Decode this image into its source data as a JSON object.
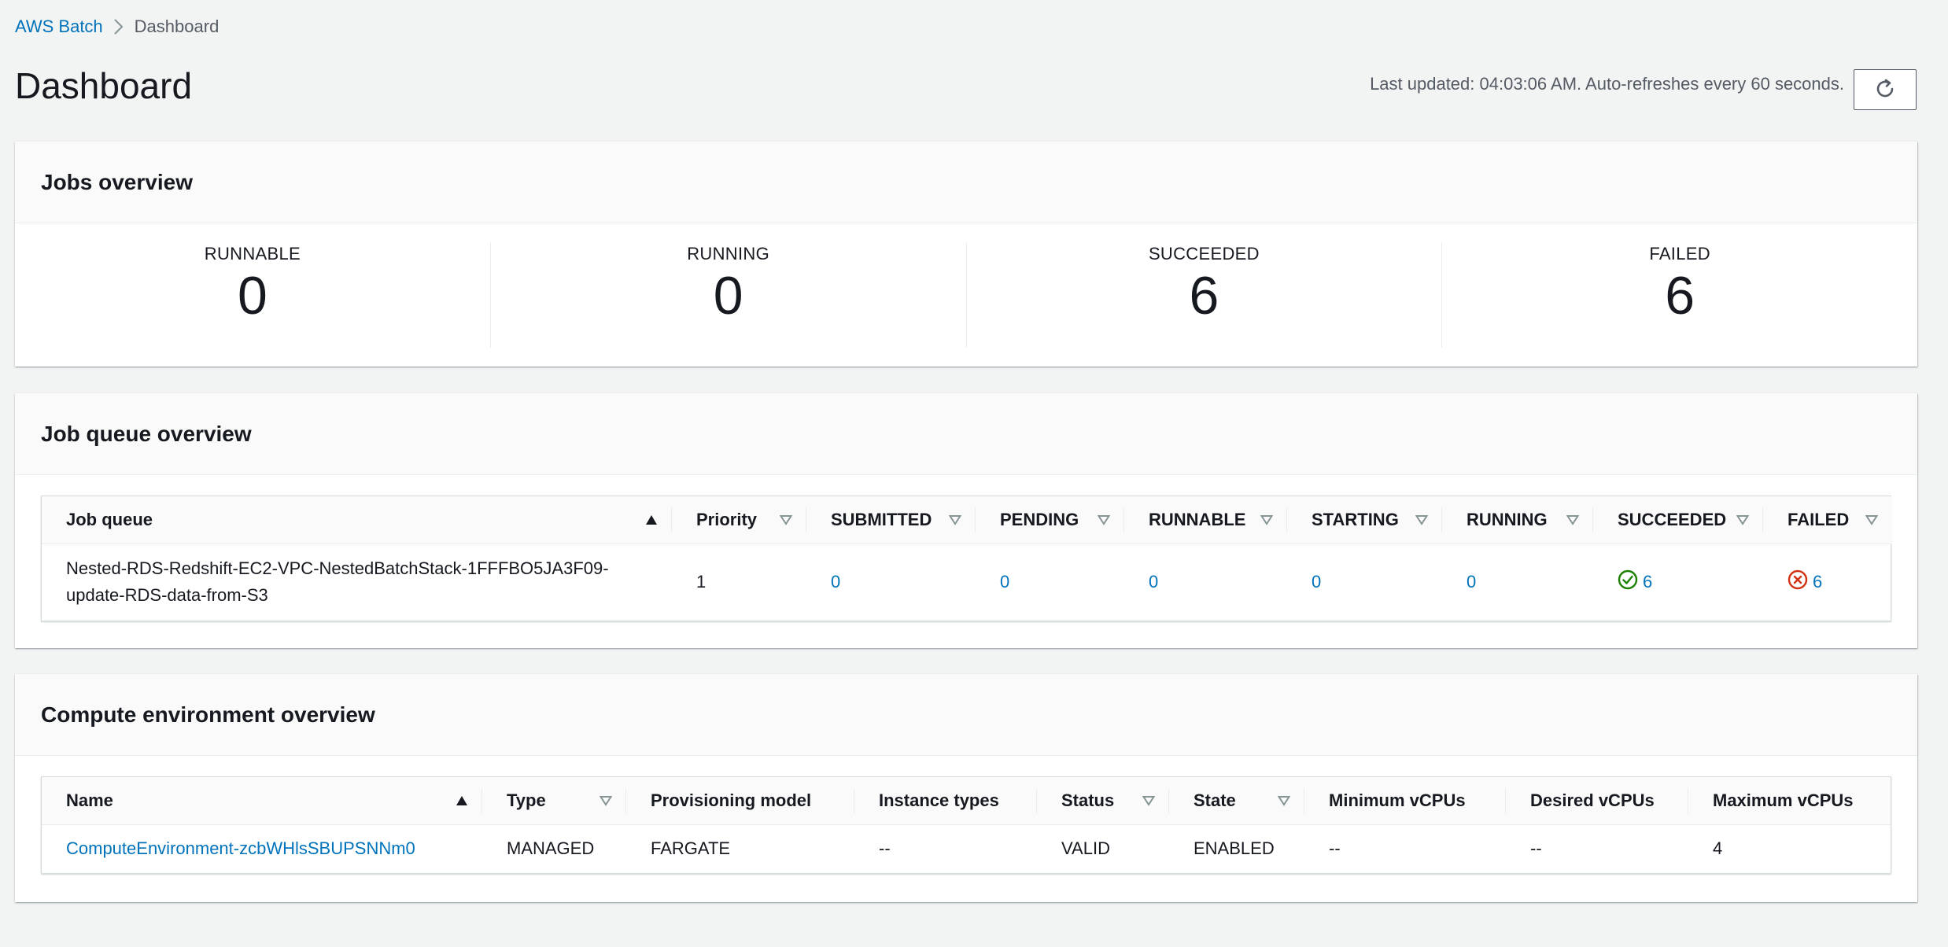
{
  "breadcrumb": {
    "root": "AWS Batch",
    "current": "Dashboard"
  },
  "header": {
    "title": "Dashboard",
    "last_updated": "Last updated: 04:03:06 AM. Auto-refreshes every 60 seconds."
  },
  "jobs_overview": {
    "title": "Jobs overview",
    "stats": [
      {
        "label": "RUNNABLE",
        "value": "0"
      },
      {
        "label": "RUNNING",
        "value": "0"
      },
      {
        "label": "SUCCEEDED",
        "value": "6"
      },
      {
        "label": "FAILED",
        "value": "6"
      }
    ]
  },
  "job_queue_overview": {
    "title": "Job queue overview",
    "columns": [
      "Job queue",
      "Priority",
      "SUBMITTED",
      "PENDING",
      "RUNNABLE",
      "STARTING",
      "RUNNING",
      "SUCCEEDED",
      "FAILED"
    ],
    "rows": [
      {
        "name_line1": "Nested-RDS-Redshift-EC2-VPC-NestedBatchStack-1FFFBO5JA3F09-",
        "name_line2": "update-RDS-data-from-S3",
        "priority": "1",
        "submitted": "0",
        "pending": "0",
        "runnable": "0",
        "starting": "0",
        "running": "0",
        "succeeded": "6",
        "failed": "6"
      }
    ]
  },
  "compute_environment_overview": {
    "title": "Compute environment overview",
    "columns": [
      "Name",
      "Type",
      "Provisioning model",
      "Instance types",
      "Status",
      "State",
      "Minimum vCPUs",
      "Desired vCPUs",
      "Maximum vCPUs"
    ],
    "rows": [
      {
        "name": "ComputeEnvironment-zcbWHlsSBUPSNNm0",
        "type": "MANAGED",
        "provisioning_model": "FARGATE",
        "instance_types": "--",
        "status": "VALID",
        "state": "ENABLED",
        "min_vcpus": "--",
        "desired_vcpus": "--",
        "max_vcpus": "4"
      }
    ]
  },
  "icons": {
    "breadcrumb_sep": "chevron-right-icon",
    "refresh": "refresh-icon",
    "sort_asc": "sort-ascending-icon",
    "sort_filter": "sort-caret-icon",
    "success": "check-circle-icon",
    "error": "x-circle-icon"
  },
  "colors": {
    "link": "#0073bb",
    "success": "#1d8102",
    "error": "#d13212"
  }
}
